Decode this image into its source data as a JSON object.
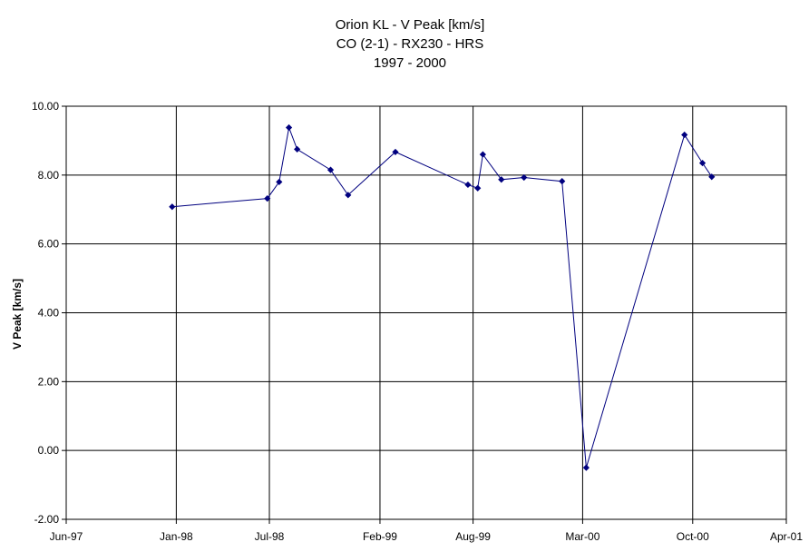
{
  "chart_data": {
    "type": "line",
    "title_lines": [
      "Orion KL - V Peak [km/s]",
      "CO (2-1) - RX230 - HRS",
      "1997 - 2000"
    ],
    "xlabel": "",
    "ylabel": "V Peak [km/s]",
    "xlim": [
      "1997-06-01",
      "2001-04-01"
    ],
    "ylim": [
      -2.0,
      10.0
    ],
    "x_ticks": [
      {
        "date": "1997-06-01",
        "label": "Jun-97"
      },
      {
        "date": "1998-01-01",
        "label": "Jan-98"
      },
      {
        "date": "1998-07-01",
        "label": "Jul-98"
      },
      {
        "date": "1999-02-01",
        "label": "Feb-99"
      },
      {
        "date": "1999-08-01",
        "label": "Aug-99"
      },
      {
        "date": "2000-03-01",
        "label": "Mar-00"
      },
      {
        "date": "2000-10-01",
        "label": "Oct-00"
      },
      {
        "date": "2001-04-01",
        "label": "Apr-01"
      }
    ],
    "y_ticks": [
      "-2.00",
      "0.00",
      "2.00",
      "4.00",
      "6.00",
      "8.00",
      "10.00"
    ],
    "grid": true,
    "series_color": "#00007f",
    "series": [
      {
        "points": [
          {
            "x": "1997-12-24",
            "y": 7.08
          },
          {
            "x": "1998-06-27",
            "y": 7.32
          },
          {
            "x": "1998-07-20",
            "y": 7.8
          },
          {
            "x": "1998-08-08",
            "y": 9.38
          },
          {
            "x": "1998-08-24",
            "y": 8.75
          },
          {
            "x": "1998-10-28",
            "y": 8.15
          },
          {
            "x": "1998-12-01",
            "y": 7.42
          },
          {
            "x": "1999-03-03",
            "y": 8.67
          },
          {
            "x": "1999-07-22",
            "y": 7.72
          },
          {
            "x": "1999-08-10",
            "y": 7.62
          },
          {
            "x": "1999-08-20",
            "y": 8.6
          },
          {
            "x": "1999-09-25",
            "y": 7.87
          },
          {
            "x": "1999-11-08",
            "y": 7.93
          },
          {
            "x": "2000-01-21",
            "y": 7.82
          },
          {
            "x": "2000-03-08",
            "y": -0.5
          },
          {
            "x": "2000-09-15",
            "y": 9.17
          },
          {
            "x": "2000-10-20",
            "y": 8.35
          },
          {
            "x": "2000-11-07",
            "y": 7.95
          }
        ]
      }
    ]
  }
}
